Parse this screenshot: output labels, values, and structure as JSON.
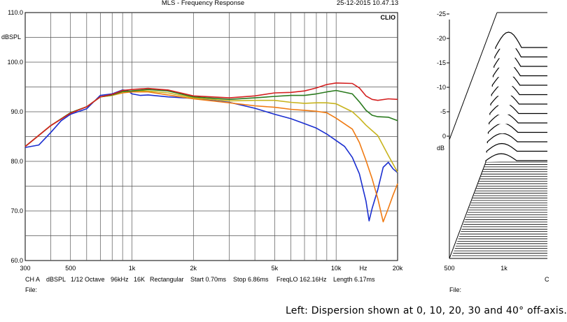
{
  "left_chart": {
    "title": "MLS - Frequency Response",
    "date": "25-12-2015 10.47.13",
    "logo": "CLIO",
    "ylabel": "dBSPL",
    "x_unit_label": "Hz",
    "y_ticks": [
      "110.0",
      "100.0",
      "90.0",
      "80.0",
      "70.0",
      "60.0"
    ],
    "x_ticks": [
      "300",
      "500",
      "1k",
      "2k",
      "5k",
      "10k",
      "20k"
    ],
    "status": {
      "channel": "CH A",
      "unit": "dBSPL",
      "smoothing": "1/12 Octave",
      "rate": "96kHz",
      "size": "16K",
      "window": "Rectangular",
      "start": "Start 0.70ms",
      "stop": "Stop 6.86ms",
      "freqlo": "FreqLO 162.16Hz",
      "length": "Length 6.17ms"
    },
    "file_label": "File:"
  },
  "right_chart": {
    "ylabel": "dB",
    "y_ticks": [
      "0",
      "-5",
      "-10",
      "-15",
      "-20",
      "-25"
    ],
    "x_ticks": [
      "500",
      "1k"
    ],
    "x_tick_partial": "C",
    "file_label": "File:"
  },
  "caption": "Left: Dispersion shown at 0, 10, 20, 30 and 40° off-axis.",
  "colors": {
    "on_axis_0": "#d42020",
    "off_axis_10": "#2a7a1e",
    "off_axis_20": "#c8b41e",
    "off_axis_30": "#f07a12",
    "off_axis_40": "#1a2ed0"
  },
  "chart_data": {
    "type": "line",
    "x_scale": "log",
    "xlim": [
      300,
      20000
    ],
    "ylim": [
      60,
      110
    ],
    "series": [
      {
        "color": "#d42020",
        "points": [
          [
            300,
            83
          ],
          [
            400,
            87.2
          ],
          [
            500,
            89.7
          ],
          [
            600,
            91
          ],
          [
            700,
            93
          ],
          [
            800,
            93.5
          ],
          [
            900,
            94.3
          ],
          [
            1000,
            94.5
          ],
          [
            1200,
            94.7
          ],
          [
            1500,
            94.4
          ],
          [
            2000,
            93.2
          ],
          [
            3000,
            92.8
          ],
          [
            4000,
            93.2
          ],
          [
            5000,
            93.8
          ],
          [
            6000,
            93.9
          ],
          [
            7000,
            94.2
          ],
          [
            8000,
            94.8
          ],
          [
            9000,
            95.5
          ],
          [
            10000,
            95.8
          ],
          [
            12000,
            95.7
          ],
          [
            13000,
            94.8
          ],
          [
            14000,
            93.2
          ],
          [
            15000,
            92.5
          ],
          [
            16000,
            92.3
          ],
          [
            18000,
            92.6
          ],
          [
            20000,
            92.5
          ]
        ]
      },
      {
        "color": "#2a7a1e",
        "points": [
          [
            300,
            83
          ],
          [
            400,
            87.2
          ],
          [
            500,
            89.8
          ],
          [
            600,
            91
          ],
          [
            700,
            93
          ],
          [
            800,
            93.4
          ],
          [
            900,
            94.1
          ],
          [
            1000,
            94.2
          ],
          [
            1200,
            94.5
          ],
          [
            1500,
            94.2
          ],
          [
            2000,
            93
          ],
          [
            3000,
            92.5
          ],
          [
            4000,
            92.8
          ],
          [
            5000,
            93.1
          ],
          [
            6000,
            93.3
          ],
          [
            7000,
            93.3
          ],
          [
            8000,
            93.6
          ],
          [
            9000,
            94
          ],
          [
            10000,
            94.3
          ],
          [
            12000,
            93.6
          ],
          [
            13000,
            92
          ],
          [
            14000,
            90.3
          ],
          [
            15000,
            89.3
          ],
          [
            16000,
            89
          ],
          [
            18000,
            88.9
          ],
          [
            20000,
            88.2
          ]
        ]
      },
      {
        "color": "#c8b41e",
        "points": [
          [
            300,
            83
          ],
          [
            400,
            87.2
          ],
          [
            500,
            89.8
          ],
          [
            600,
            91
          ],
          [
            700,
            93
          ],
          [
            800,
            93.3
          ],
          [
            900,
            94
          ],
          [
            1000,
            94.2
          ],
          [
            1200,
            94.2
          ],
          [
            1500,
            93.8
          ],
          [
            2000,
            92.8
          ],
          [
            3000,
            92.2
          ],
          [
            4000,
            92.3
          ],
          [
            5000,
            92.3
          ],
          [
            6000,
            91.9
          ],
          [
            7000,
            91.7
          ],
          [
            8000,
            91.8
          ],
          [
            9000,
            91.8
          ],
          [
            10000,
            91.6
          ],
          [
            12000,
            90
          ],
          [
            13000,
            88.7
          ],
          [
            14000,
            87.3
          ],
          [
            15000,
            86.2
          ],
          [
            16000,
            85.2
          ],
          [
            18000,
            81.2
          ],
          [
            20000,
            77.8
          ]
        ]
      },
      {
        "color": "#f07a12",
        "points": [
          [
            300,
            83
          ],
          [
            400,
            87.2
          ],
          [
            500,
            89.8
          ],
          [
            600,
            91
          ],
          [
            700,
            93
          ],
          [
            800,
            93.3
          ],
          [
            900,
            93.8
          ],
          [
            1000,
            94
          ],
          [
            1200,
            94
          ],
          [
            1500,
            93.4
          ],
          [
            2000,
            92.6
          ],
          [
            3000,
            91.8
          ],
          [
            4000,
            91.2
          ],
          [
            5000,
            90.9
          ],
          [
            6000,
            90.5
          ],
          [
            7000,
            90.3
          ],
          [
            8000,
            90.1
          ],
          [
            9000,
            89.8
          ],
          [
            10000,
            88.7
          ],
          [
            12000,
            86.5
          ],
          [
            13000,
            83.8
          ],
          [
            14000,
            80.2
          ],
          [
            15000,
            76.5
          ],
          [
            16000,
            72.5
          ],
          [
            17000,
            67.8
          ],
          [
            18000,
            70.5
          ],
          [
            19000,
            73.2
          ],
          [
            20000,
            75.5
          ]
        ]
      },
      {
        "color": "#1a2ed0",
        "points": [
          [
            300,
            82.8
          ],
          [
            350,
            83.3
          ],
          [
            400,
            85.8
          ],
          [
            450,
            88.2
          ],
          [
            500,
            89.5
          ],
          [
            600,
            90.6
          ],
          [
            700,
            93.3
          ],
          [
            800,
            93.6
          ],
          [
            900,
            94.4
          ],
          [
            950,
            94.3
          ],
          [
            1000,
            93.6
          ],
          [
            1100,
            93.3
          ],
          [
            1200,
            93.4
          ],
          [
            1500,
            93
          ],
          [
            2000,
            92.7
          ],
          [
            3000,
            91.9
          ],
          [
            4000,
            90.7
          ],
          [
            5000,
            89.5
          ],
          [
            6000,
            88.6
          ],
          [
            7000,
            87.6
          ],
          [
            8000,
            86.7
          ],
          [
            9000,
            85.5
          ],
          [
            10000,
            84.2
          ],
          [
            11000,
            83
          ],
          [
            12000,
            80.8
          ],
          [
            13000,
            77.5
          ],
          [
            14000,
            72
          ],
          [
            14500,
            68
          ],
          [
            15000,
            70.5
          ],
          [
            16000,
            74.3
          ],
          [
            17000,
            78.8
          ],
          [
            18000,
            79.8
          ],
          [
            19000,
            78.5
          ],
          [
            20000,
            77.7
          ]
        ]
      }
    ]
  }
}
